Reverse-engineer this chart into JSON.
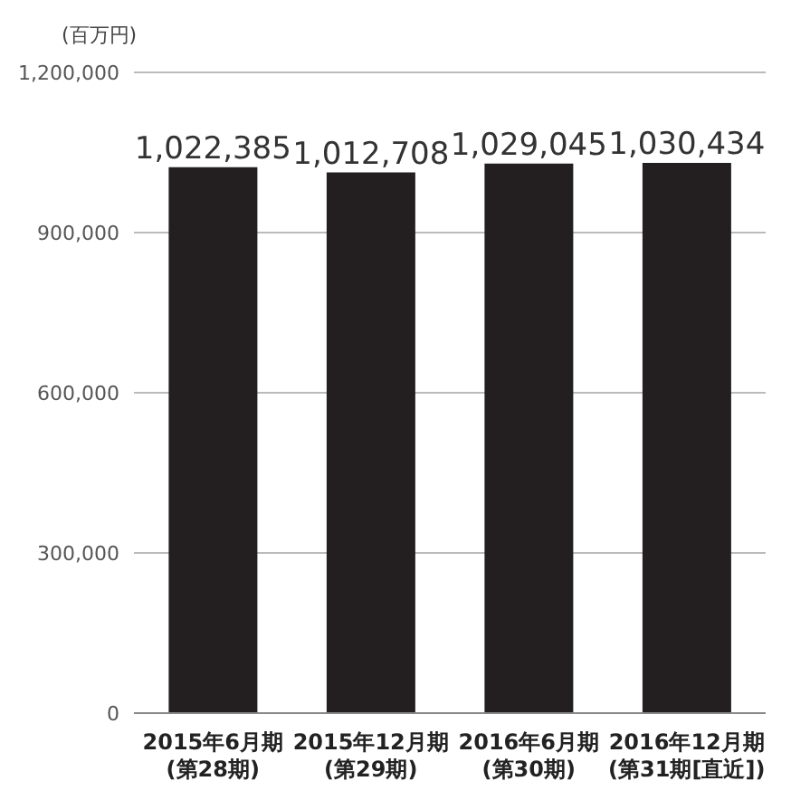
{
  "chart_data": {
    "type": "bar",
    "ylabel": "(百万円)",
    "categories": [
      "2015年6月期\n(第28期)",
      "2015年12月期\n(第29期)",
      "2016年6月期\n(第30期)",
      "2016年12月期\n(第31期[直近])"
    ],
    "values": [
      1022385,
      1012708,
      1029045,
      1030434
    ],
    "color": "#231f20",
    "value_labels": [
      "1,022,385",
      "1,012,708",
      "1,029,045",
      "1,030,434"
    ],
    "ylim": [
      0,
      1200000
    ],
    "yticks": [
      0,
      {
        "value": 300000,
        "label": "300,000"
      },
      {
        "value": 600000,
        "label": "600,000"
      },
      {
        "value": 900000,
        "label": "900,000"
      },
      {
        "value": 1200000,
        "label": "1,200,000"
      }
    ],
    "grid": "y"
  }
}
